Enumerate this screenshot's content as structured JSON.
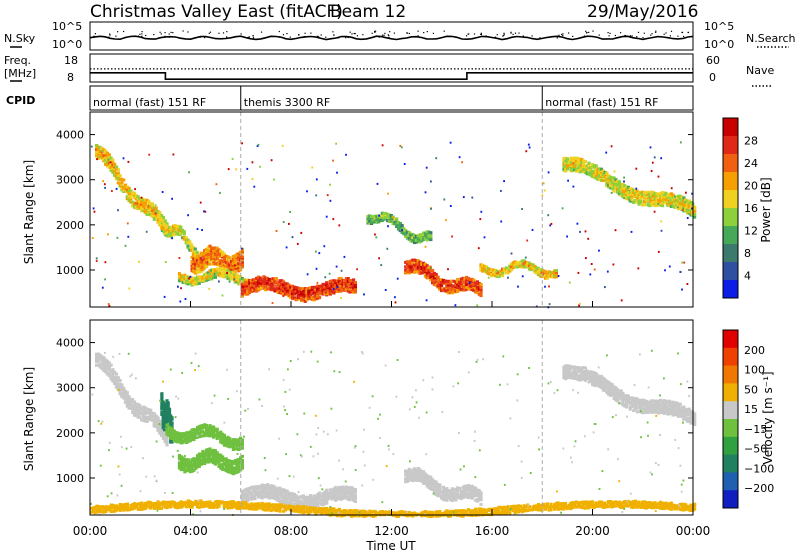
{
  "header": {
    "station": "Christmas Valley East (fitACF)",
    "beam": "Beam 12",
    "date": "29/May/2016"
  },
  "strip": {
    "nsky_label": "N.Sky",
    "nsky_ticks": [
      "10^5",
      "10^0"
    ],
    "nsearch_label": "N.Search",
    "nsearch_ticks": [
      "10^5",
      "10^0"
    ],
    "freq_label_1": "Freq.",
    "freq_label_2": "[MHz]",
    "freq_ticks": [
      "18",
      "8"
    ],
    "nave_label": "Nave",
    "nave_ticks": [
      "60",
      "0"
    ],
    "cpid_label": "CPID",
    "cpid_segments": [
      {
        "label": "normal (fast) 151 RF",
        "start_hour": 0,
        "end_hour": 6
      },
      {
        "label": "themis 3300 RF",
        "start_hour": 6,
        "end_hour": 18
      },
      {
        "label": "normal (fast) 151 RF",
        "start_hour": 18,
        "end_hour": 24
      }
    ],
    "freq_mhz": [
      {
        "start_hour": 0,
        "end_hour": 3,
        "value": 11.3
      },
      {
        "start_hour": 3,
        "end_hour": 15,
        "value": 9.0
      },
      {
        "start_hour": 15,
        "end_hour": 24,
        "value": 11.3
      }
    ],
    "nave_level": 28
  },
  "chart_data": [
    {
      "type": "heatmap",
      "title": "Power",
      "ylabel": "Slant Range [km]",
      "ylim": [
        180,
        4500
      ],
      "xlim": [
        0,
        24
      ],
      "ytick_values": [
        1000,
        2000,
        3000,
        4000
      ],
      "colorbar": {
        "label": "Power [dB]",
        "tick_labels": [
          "4",
          "8",
          "12",
          "16",
          "20",
          "24",
          "28"
        ],
        "colors": [
          "#0a1ee6",
          "#2f4fa0",
          "#3d7a6e",
          "#48a85a",
          "#8cd03c",
          "#f0d020",
          "#f5a000",
          "#f06010",
          "#e02818",
          "#c80000"
        ]
      },
      "echo_regions": [
        {
          "name": "dusk-arc",
          "t0": 0.2,
          "t1": 3.0,
          "r0": 3650,
          "r1": 1900,
          "width": 320,
          "value": 20
        },
        {
          "name": "arc-2",
          "t0": 2.6,
          "t1": 4.2,
          "r0": 2200,
          "r1": 1500,
          "width": 220,
          "value": 18
        },
        {
          "name": "midnight-blob",
          "t0": 4.0,
          "t1": 6.0,
          "r0": 1300,
          "r1": 1250,
          "width": 420,
          "value": 24
        },
        {
          "name": "low-band",
          "t0": 3.5,
          "t1": 7.0,
          "r0": 950,
          "r1": 800,
          "width": 200,
          "value": 18
        },
        {
          "name": "morning-band",
          "t0": 6.0,
          "t1": 10.5,
          "r0": 650,
          "r1": 600,
          "width": 300,
          "value": 27
        },
        {
          "name": "dawn-arc",
          "t0": 11.0,
          "t1": 13.5,
          "r0": 2300,
          "r1": 1700,
          "width": 180,
          "value": 14
        },
        {
          "name": "afternoon-band",
          "t0": 12.5,
          "t1": 15.5,
          "r0": 1100,
          "r1": 550,
          "width": 280,
          "value": 27
        },
        {
          "name": "evening-band",
          "t0": 15.5,
          "t1": 18.5,
          "r0": 1100,
          "r1": 1050,
          "width": 160,
          "value": 20
        },
        {
          "name": "late-arc",
          "t0": 18.8,
          "t1": 24.0,
          "r0": 3400,
          "r1": 2300,
          "width": 300,
          "value": 18
        }
      ]
    },
    {
      "type": "heatmap",
      "title": "Velocity",
      "ylabel": "Slant Range [km]",
      "xlabel": "Time UT",
      "ylim": [
        180,
        4500
      ],
      "xlim": [
        0,
        24
      ],
      "ytick_values": [
        1000,
        2000,
        3000,
        4000
      ],
      "xtick_labels": [
        "00:00",
        "04:00",
        "08:00",
        "12:00",
        "16:00",
        "20:00",
        "00:00"
      ],
      "colorbar": {
        "label": "Velocity [m s⁻¹]",
        "tick_labels": [
          "200",
          "100",
          "50",
          "15",
          "−15",
          "−50",
          "−100",
          "−200"
        ],
        "colors": [
          "#1020c0",
          "#2060b0",
          "#208060",
          "#30a040",
          "#70c040",
          "#c8c8c8",
          "#f0b000",
          "#f07800",
          "#f04000",
          "#e00000"
        ]
      },
      "echo_regions": [
        {
          "name": "dusk-arc",
          "t0": 0.2,
          "t1": 3.0,
          "r0": 3650,
          "r1": 1900,
          "width": 320,
          "value": 0
        },
        {
          "name": "blue-patch",
          "t0": 2.8,
          "t1": 3.2,
          "r0": 2600,
          "r1": 2200,
          "width": 600,
          "value": 150
        },
        {
          "name": "green-arc",
          "t0": 3.0,
          "t1": 6.0,
          "r0": 2100,
          "r1": 1900,
          "width": 250,
          "value": 40
        },
        {
          "name": "green-blob",
          "t0": 3.5,
          "t1": 6.0,
          "r0": 1450,
          "r1": 1400,
          "width": 300,
          "value": 45
        },
        {
          "name": "morning-band",
          "t0": 6.0,
          "t1": 10.5,
          "r0": 650,
          "r1": 600,
          "width": 300,
          "value": 0
        },
        {
          "name": "afternoon-band",
          "t0": 12.5,
          "t1": 15.5,
          "r0": 1100,
          "r1": 550,
          "width": 280,
          "value": 0
        },
        {
          "name": "ground-scatter",
          "t0": 0.0,
          "t1": 24.0,
          "r0": 350,
          "r1": 350,
          "width": 150,
          "value": -30
        },
        {
          "name": "late-arc",
          "t0": 18.8,
          "t1": 24.0,
          "r0": 3400,
          "r1": 2300,
          "width": 300,
          "value": 0
        }
      ]
    }
  ]
}
